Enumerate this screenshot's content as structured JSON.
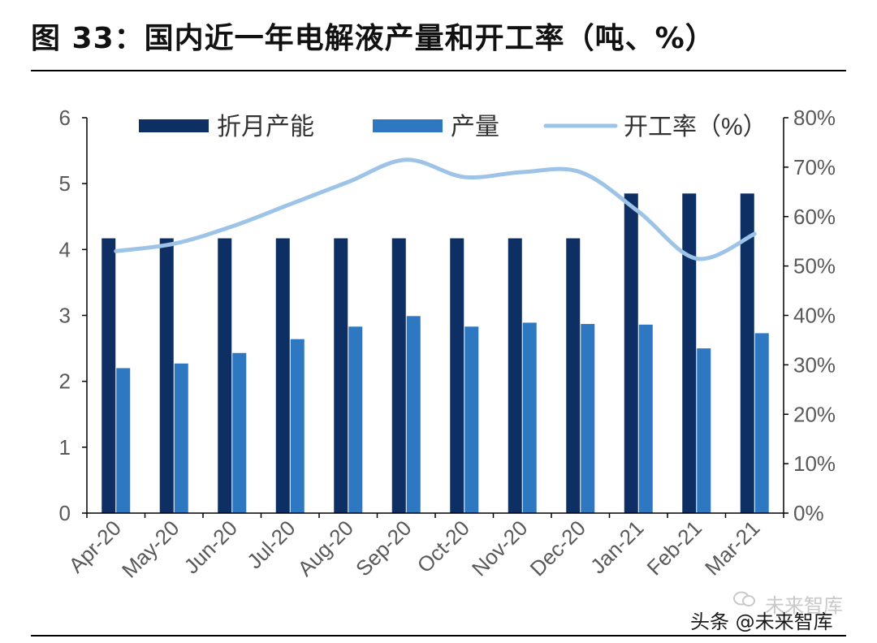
{
  "figure": {
    "title": "图 33：国内近一年电解液产量和开工率（吨、%）"
  },
  "watermark": {
    "line1": "未来智库",
    "line2": "头条 @未来智库",
    "icon": "wechat-icon"
  },
  "colors": {
    "capacity": "#0d2f63",
    "production": "#2e78c2",
    "utilization": "#9dc3e6",
    "axis": "#000000",
    "tick_text": "#595959"
  },
  "chart_data": {
    "type": "bar",
    "categories": [
      "Apr-20",
      "May-20",
      "Jun-20",
      "Jul-20",
      "Aug-20",
      "Sep-20",
      "Oct-20",
      "Nov-20",
      "Dec-20",
      "Jan-21",
      "Feb-21",
      "Mar-21"
    ],
    "series": [
      {
        "name": "折月产能",
        "type": "bar",
        "axis": "left",
        "values": [
          4.17,
          4.17,
          4.17,
          4.17,
          4.17,
          4.17,
          4.17,
          4.17,
          4.17,
          4.85,
          4.85,
          4.85
        ]
      },
      {
        "name": "产量",
        "type": "bar",
        "axis": "left",
        "values": [
          2.2,
          2.27,
          2.43,
          2.64,
          2.83,
          2.99,
          2.83,
          2.89,
          2.87,
          2.86,
          2.5,
          2.73
        ]
      },
      {
        "name": "开工率（%）",
        "type": "line",
        "axis": "right",
        "values": [
          53,
          54.5,
          58,
          62.5,
          67,
          71.5,
          68,
          69,
          69,
          61,
          51.5,
          56.5
        ]
      }
    ],
    "left_axis": {
      "min": 0,
      "max": 6,
      "ticks": [
        "0",
        "1",
        "2",
        "3",
        "4",
        "5",
        "6"
      ]
    },
    "right_axis": {
      "min": 0,
      "max": 80,
      "ticks": [
        "0%",
        "10%",
        "20%",
        "30%",
        "40%",
        "50%",
        "60%",
        "70%",
        "80%"
      ]
    },
    "legend": {
      "position": "top",
      "entries": [
        "折月产能",
        "产量",
        "开工率（%）"
      ]
    },
    "grid": false
  }
}
